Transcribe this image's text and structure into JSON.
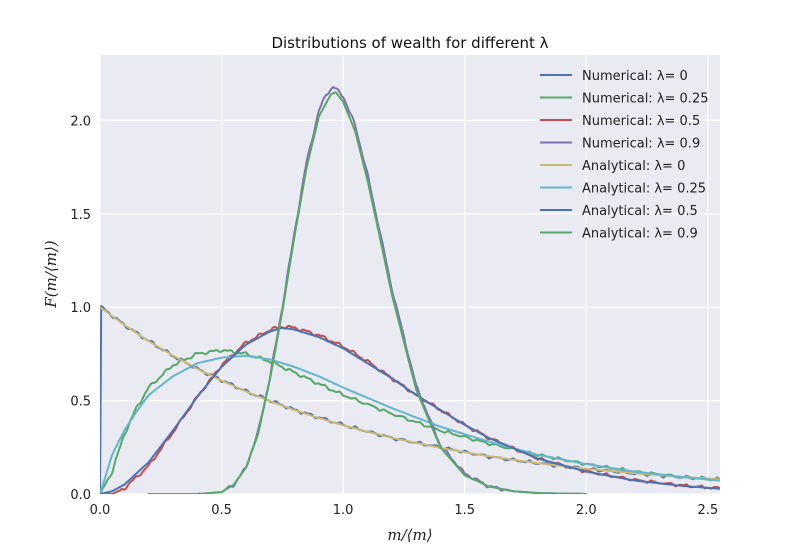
{
  "chart_data": {
    "type": "line",
    "title": "Distributions of wealth for different λ",
    "xlabel": "m/⟨m⟩",
    "ylabel": "F(m/⟨m⟩)",
    "xlim": [
      0,
      2.55
    ],
    "ylim": [
      0,
      2.35
    ],
    "grid": true,
    "legend_position": "top-right",
    "x_ticks": [
      0,
      0.5,
      1.0,
      1.5,
      2.0,
      2.5
    ],
    "x_tick_labels": [
      "0.0",
      "0.5",
      "1.0",
      "1.5",
      "2.0",
      "2.5"
    ],
    "y_ticks": [
      0,
      0.5,
      1.0,
      1.5,
      2.0
    ],
    "y_tick_labels": [
      "0.0",
      "0.5",
      "1.0",
      "1.5",
      "2.0"
    ],
    "series": [
      {
        "name": "Numerical: λ= 0",
        "color": "#4c72b0",
        "jagged": true,
        "x": [
          0,
          0.005,
          0.1,
          0.2,
          0.3,
          0.4,
          0.5,
          0.6,
          0.7,
          0.8,
          0.9,
          1.0,
          1.2,
          1.4,
          1.6,
          1.8,
          2.0,
          2.2,
          2.4,
          2.55
        ],
        "y": [
          0,
          1.0,
          0.905,
          0.82,
          0.74,
          0.67,
          0.61,
          0.55,
          0.5,
          0.45,
          0.41,
          0.37,
          0.3,
          0.25,
          0.2,
          0.165,
          0.135,
          0.11,
          0.09,
          0.078
        ]
      },
      {
        "name": "Numerical: λ= 0.25",
        "color": "#55a868",
        "jagged": true,
        "x": [
          0,
          0.05,
          0.1,
          0.15,
          0.2,
          0.3,
          0.4,
          0.5,
          0.6,
          0.7,
          0.8,
          0.9,
          1.0,
          1.2,
          1.4,
          1.6,
          1.8,
          2.0,
          2.2,
          2.4,
          2.55
        ],
        "y": [
          0,
          0.12,
          0.32,
          0.46,
          0.57,
          0.69,
          0.75,
          0.77,
          0.75,
          0.71,
          0.65,
          0.59,
          0.53,
          0.43,
          0.34,
          0.27,
          0.21,
          0.16,
          0.12,
          0.09,
          0.075
        ]
      },
      {
        "name": "Numerical: λ= 0.5",
        "color": "#c44e52",
        "jagged": true,
        "x": [
          0,
          0.05,
          0.1,
          0.2,
          0.3,
          0.4,
          0.5,
          0.6,
          0.7,
          0.75,
          0.8,
          0.9,
          1.0,
          1.1,
          1.2,
          1.3,
          1.4,
          1.5,
          1.6,
          1.8,
          2.0,
          2.2,
          2.4,
          2.55
        ],
        "y": [
          0,
          0.0,
          0.03,
          0.15,
          0.33,
          0.52,
          0.69,
          0.81,
          0.88,
          0.895,
          0.89,
          0.85,
          0.79,
          0.71,
          0.62,
          0.53,
          0.45,
          0.37,
          0.3,
          0.19,
          0.12,
          0.075,
          0.045,
          0.03
        ]
      },
      {
        "name": "Numerical: λ= 0.9",
        "color": "#8172b2",
        "jagged": true,
        "x": [
          0.2,
          0.4,
          0.5,
          0.55,
          0.6,
          0.65,
          0.7,
          0.75,
          0.8,
          0.85,
          0.9,
          0.93,
          0.96,
          1.0,
          1.05,
          1.1,
          1.15,
          1.2,
          1.3,
          1.4,
          1.5,
          1.6,
          1.7,
          1.8,
          2.0
        ],
        "y": [
          0,
          0.0,
          0.01,
          0.05,
          0.14,
          0.33,
          0.63,
          1.0,
          1.4,
          1.78,
          2.05,
          2.14,
          2.18,
          2.13,
          1.97,
          1.71,
          1.41,
          1.1,
          0.58,
          0.26,
          0.11,
          0.04,
          0.015,
          0.005,
          0
        ]
      },
      {
        "name": "Analytical: λ= 0",
        "color": "#ccb974",
        "x": [
          0,
          0.1,
          0.2,
          0.3,
          0.4,
          0.5,
          0.6,
          0.7,
          0.8,
          0.9,
          1.0,
          1.2,
          1.4,
          1.6,
          1.8,
          2.0,
          2.2,
          2.4,
          2.55
        ],
        "y": [
          1.0,
          0.905,
          0.819,
          0.741,
          0.67,
          0.607,
          0.549,
          0.497,
          0.449,
          0.407,
          0.368,
          0.301,
          0.247,
          0.202,
          0.165,
          0.135,
          0.111,
          0.091,
          0.078
        ]
      },
      {
        "name": "Analytical: λ= 0.25",
        "color": "#64b5cd",
        "x": [
          0,
          0.05,
          0.1,
          0.15,
          0.2,
          0.3,
          0.4,
          0.5,
          0.6,
          0.7,
          0.8,
          0.9,
          1.0,
          1.2,
          1.4,
          1.6,
          1.8,
          2.0,
          2.2,
          2.4,
          2.55
        ],
        "y": [
          0,
          0.21,
          0.34,
          0.44,
          0.53,
          0.63,
          0.7,
          0.73,
          0.74,
          0.72,
          0.68,
          0.63,
          0.57,
          0.46,
          0.36,
          0.28,
          0.21,
          0.16,
          0.12,
          0.09,
          0.072
        ]
      },
      {
        "name": "Analytical: λ= 0.5",
        "color": "#4c72b0",
        "x": [
          0,
          0.05,
          0.1,
          0.2,
          0.3,
          0.4,
          0.5,
          0.6,
          0.7,
          0.75,
          0.8,
          0.9,
          1.0,
          1.1,
          1.2,
          1.3,
          1.4,
          1.5,
          1.6,
          1.8,
          2.0,
          2.2,
          2.4,
          2.55
        ],
        "y": [
          0,
          0.015,
          0.05,
          0.17,
          0.34,
          0.52,
          0.68,
          0.8,
          0.87,
          0.89,
          0.88,
          0.84,
          0.78,
          0.7,
          0.62,
          0.53,
          0.45,
          0.37,
          0.3,
          0.19,
          0.12,
          0.072,
          0.043,
          0.028
        ]
      },
      {
        "name": "Analytical: λ= 0.9",
        "color": "#55a868",
        "x": [
          0.2,
          0.4,
          0.5,
          0.55,
          0.6,
          0.65,
          0.7,
          0.75,
          0.8,
          0.85,
          0.9,
          0.95,
          0.97,
          1.0,
          1.05,
          1.1,
          1.15,
          1.2,
          1.3,
          1.4,
          1.5,
          1.6,
          1.7,
          1.8,
          2.0
        ],
        "y": [
          0,
          0.0,
          0.01,
          0.05,
          0.14,
          0.32,
          0.62,
          0.98,
          1.38,
          1.75,
          2.02,
          2.14,
          2.15,
          2.1,
          1.94,
          1.68,
          1.38,
          1.07,
          0.56,
          0.25,
          0.1,
          0.04,
          0.015,
          0.005,
          0
        ]
      }
    ]
  }
}
